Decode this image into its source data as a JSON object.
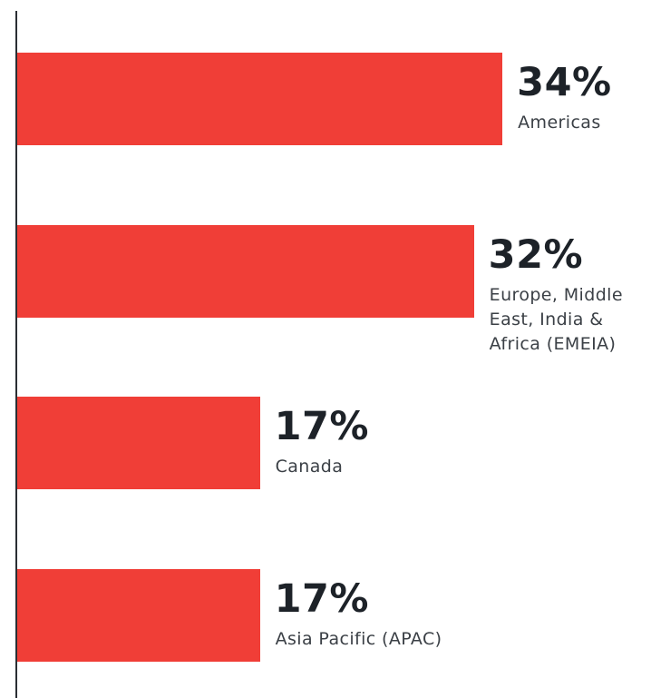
{
  "chart_data": {
    "type": "bar",
    "orientation": "horizontal",
    "categories": [
      "Americas",
      "Europe, Middle East, India & Africa (EMEIA)",
      "Canada",
      "Asia Pacific (APAC)"
    ],
    "values": [
      34,
      32,
      17,
      17
    ],
    "value_labels": [
      "34%",
      "32%",
      "17%",
      "17%"
    ],
    "color": "#f03e37"
  }
}
